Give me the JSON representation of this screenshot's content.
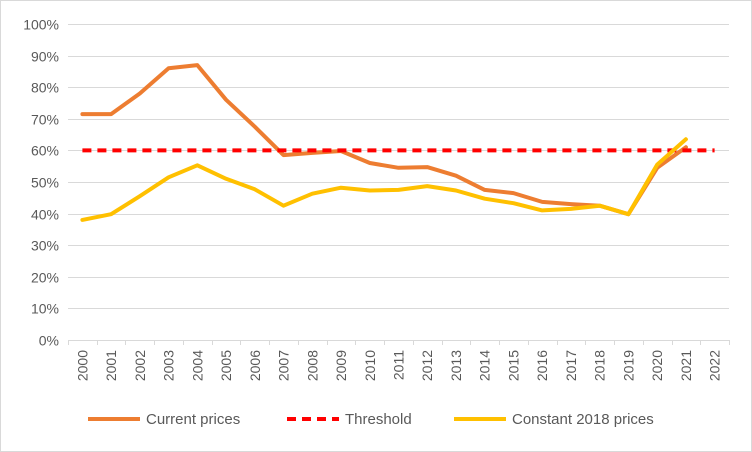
{
  "chart_data": {
    "type": "line",
    "title": "",
    "xlabel": "",
    "ylabel": "",
    "x": [
      "2000",
      "2001",
      "2002",
      "2003",
      "2004",
      "2005",
      "2006",
      "2007",
      "2008",
      "2009",
      "2010",
      "2011",
      "2012",
      "2013",
      "2014",
      "2015",
      "2016",
      "2017",
      "2018",
      "2019",
      "2020",
      "2021",
      "2022"
    ],
    "ylim": [
      0,
      1
    ],
    "y_tick_labels": [
      "0%",
      "10%",
      "20%",
      "30%",
      "40%",
      "50%",
      "60%",
      "70%",
      "80%",
      "90%",
      "100%"
    ],
    "y_tick_values": [
      0,
      0.1,
      0.2,
      0.3,
      0.4,
      0.5,
      0.6,
      0.7,
      0.8,
      0.9,
      1.0
    ],
    "grid": "horizontal",
    "legend_position": "bottom",
    "series": [
      {
        "name": "Current prices",
        "color": "#ED7D31",
        "style": "solid",
        "values": [
          0.715,
          0.715,
          0.78,
          0.86,
          0.87,
          0.76,
          0.675,
          0.585,
          0.592,
          0.598,
          0.56,
          0.545,
          0.547,
          0.52,
          0.475,
          0.465,
          0.437,
          0.43,
          0.425,
          0.398,
          0.545,
          0.61,
          null
        ]
      },
      {
        "name": "Threshold",
        "color": "#FF0000",
        "style": "dashed",
        "values": [
          0.6,
          0.6,
          0.6,
          0.6,
          0.6,
          0.6,
          0.6,
          0.6,
          0.6,
          0.6,
          0.6,
          0.6,
          0.6,
          0.6,
          0.6,
          0.6,
          0.6,
          0.6,
          0.6,
          0.6,
          0.6,
          0.6,
          0.6
        ]
      },
      {
        "name": "Constant 2018 prices",
        "color": "#FFC000",
        "style": "solid",
        "values": [
          0.38,
          0.398,
          0.455,
          0.515,
          0.553,
          0.51,
          0.477,
          0.425,
          0.463,
          0.482,
          0.473,
          0.475,
          0.487,
          0.473,
          0.447,
          0.433,
          0.41,
          0.415,
          0.425,
          0.398,
          0.555,
          0.635,
          null
        ]
      }
    ]
  }
}
